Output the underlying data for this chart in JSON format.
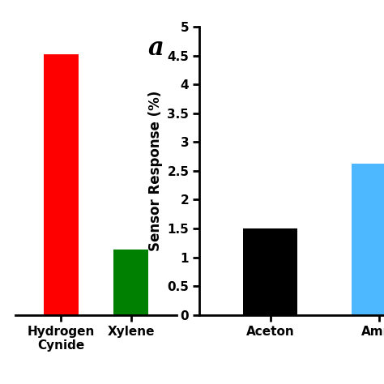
{
  "left": {
    "categories": [
      "Hydrogen\nCynide",
      "Xylene"
    ],
    "values": [
      4.8,
      1.2
    ],
    "colors": [
      "#ff0000",
      "#008000"
    ],
    "ylim": [
      0,
      5.3
    ],
    "yticks": [],
    "label_a": "a",
    "bar_width": 0.5
  },
  "right": {
    "categories": [
      "Aceton",
      "Amm"
    ],
    "values": [
      1.5,
      2.62
    ],
    "colors": [
      "#000000",
      "#4db8ff"
    ],
    "ylim": [
      0,
      5.0
    ],
    "yticks": [
      0,
      0.5,
      1.0,
      1.5,
      2.0,
      2.5,
      3.0,
      3.5,
      4.0,
      4.5,
      5.0
    ],
    "ytick_labels": [
      "0",
      "0.5",
      "1",
      "1.5",
      "2",
      "2.5",
      "3",
      "3.5",
      "4",
      "4.5",
      "5"
    ],
    "ylabel": "Sensor Response (%)",
    "bar_width": 0.5
  },
  "background_color": "#ffffff",
  "tick_label_fontsize": 11,
  "axis_label_fontsize": 12,
  "annotation_fontsize": 22,
  "xlabel_fontsize": 11,
  "spine_linewidth": 2.0
}
